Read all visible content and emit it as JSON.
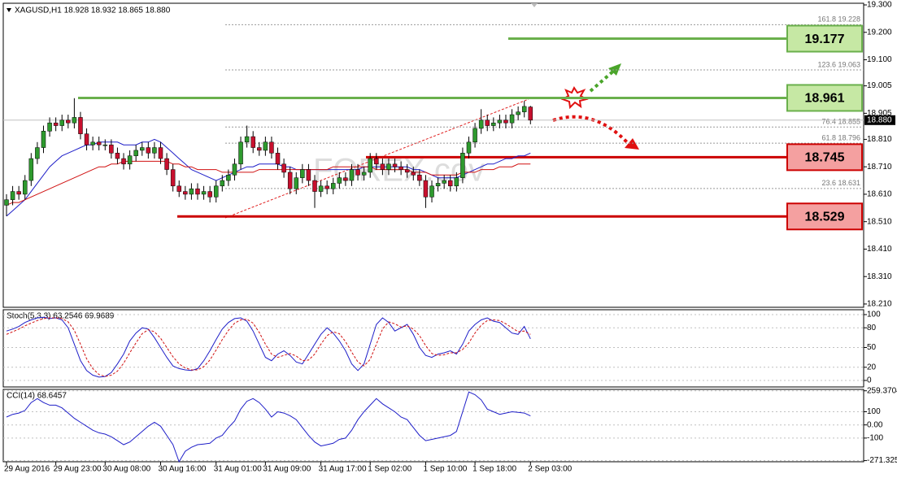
{
  "chart_data": [
    {
      "type": "candlestick",
      "title": "XAGUSD,H1  18.928 18.932 18.865 18.880",
      "watermark": "FOREX.cov",
      "categories": [
        "29 Aug 2016",
        null,
        null,
        null,
        null,
        null,
        null,
        null,
        "29 Aug 23:00",
        null,
        null,
        null,
        null,
        null,
        null,
        null,
        "30 Aug 08:00",
        null,
        null,
        null,
        null,
        null,
        null,
        null,
        null,
        "30 Aug 16:00",
        null,
        null,
        null,
        null,
        null,
        null,
        null,
        null,
        "31 Aug 01:00",
        null,
        null,
        null,
        null,
        null,
        null,
        null,
        "31 Aug 09:00",
        null,
        null,
        null,
        null,
        null,
        null,
        null,
        null,
        "31 Aug 17:00",
        null,
        null,
        null,
        null,
        null,
        null,
        null,
        "1 Sep 02:00",
        null,
        null,
        null,
        null,
        null,
        null,
        null,
        null,
        "1 Sep 10:00",
        null,
        null,
        null,
        null,
        null,
        null,
        null,
        "1 Sep 18:00",
        null,
        null,
        null,
        null,
        null,
        null,
        null,
        null,
        "2 Sep 03:00"
      ],
      "open": [
        18.57,
        18.59,
        18.62,
        18.61,
        18.66,
        18.74,
        18.78,
        18.84,
        18.87,
        18.86,
        18.88,
        18.87,
        18.89,
        18.83,
        18.79,
        18.8,
        18.79,
        18.79,
        18.76,
        18.74,
        18.72,
        18.75,
        18.77,
        18.78,
        18.76,
        18.78,
        18.74,
        18.7,
        18.64,
        18.62,
        18.61,
        18.63,
        18.61,
        18.62,
        18.6,
        18.64,
        18.66,
        18.68,
        18.72,
        18.8,
        18.82,
        18.78,
        18.77,
        18.8,
        18.76,
        18.72,
        18.69,
        18.63,
        18.67,
        18.7,
        18.66,
        18.62,
        18.64,
        18.63,
        18.65,
        18.67,
        18.66,
        18.7,
        18.68,
        18.69,
        18.74,
        18.72,
        18.7,
        18.72,
        18.71,
        18.7,
        18.69,
        18.68,
        18.66,
        18.6,
        18.64,
        18.65,
        18.66,
        18.64,
        18.67,
        18.76,
        18.8,
        18.85,
        18.88,
        18.86,
        18.87,
        18.88,
        18.87,
        18.9,
        18.91,
        18.928
      ],
      "high": [
        18.61,
        18.64,
        18.64,
        18.68,
        18.76,
        18.8,
        18.86,
        18.89,
        18.89,
        18.9,
        18.9,
        18.96,
        18.91,
        18.85,
        18.82,
        18.82,
        18.81,
        18.81,
        18.78,
        18.76,
        18.77,
        18.79,
        18.8,
        18.8,
        18.8,
        18.8,
        18.76,
        18.72,
        18.66,
        18.64,
        18.65,
        18.65,
        18.64,
        18.64,
        18.66,
        18.68,
        18.7,
        18.74,
        18.82,
        18.86,
        18.84,
        18.8,
        18.82,
        18.82,
        18.78,
        18.74,
        18.71,
        18.69,
        18.72,
        18.72,
        18.68,
        18.66,
        18.66,
        18.67,
        18.69,
        18.69,
        18.72,
        18.72,
        18.71,
        18.76,
        18.76,
        18.74,
        18.74,
        18.74,
        18.73,
        18.72,
        18.71,
        18.7,
        18.68,
        18.66,
        18.67,
        18.68,
        18.68,
        18.69,
        18.78,
        18.82,
        18.87,
        18.92,
        18.9,
        18.89,
        18.9,
        18.9,
        18.92,
        18.93,
        18.95,
        18.932
      ],
      "low": [
        18.53,
        18.57,
        18.59,
        18.59,
        18.64,
        18.72,
        18.76,
        18.82,
        18.84,
        18.84,
        18.85,
        18.85,
        18.81,
        18.77,
        18.77,
        18.77,
        18.77,
        18.74,
        18.72,
        18.7,
        18.7,
        18.73,
        18.75,
        18.74,
        18.74,
        18.72,
        18.68,
        18.62,
        18.6,
        18.59,
        18.59,
        18.59,
        18.59,
        18.58,
        18.58,
        18.62,
        18.64,
        18.66,
        18.7,
        18.78,
        18.76,
        18.75,
        18.75,
        18.74,
        18.7,
        18.67,
        18.61,
        18.61,
        18.65,
        18.64,
        18.56,
        18.6,
        18.61,
        18.61,
        18.63,
        18.64,
        18.64,
        18.66,
        18.66,
        18.67,
        18.7,
        18.68,
        18.68,
        18.69,
        18.68,
        18.67,
        18.66,
        18.64,
        18.56,
        18.58,
        18.62,
        18.63,
        18.62,
        18.62,
        18.65,
        18.74,
        18.78,
        18.83,
        18.84,
        18.84,
        18.85,
        18.85,
        18.85,
        18.88,
        18.89,
        18.865
      ],
      "close": [
        18.59,
        18.62,
        18.61,
        18.66,
        18.74,
        18.78,
        18.84,
        18.87,
        18.86,
        18.88,
        18.87,
        18.89,
        18.83,
        18.79,
        18.8,
        18.79,
        18.79,
        18.76,
        18.74,
        18.72,
        18.75,
        18.77,
        18.78,
        18.76,
        18.78,
        18.74,
        18.7,
        18.64,
        18.62,
        18.61,
        18.63,
        18.61,
        18.62,
        18.6,
        18.64,
        18.66,
        18.68,
        18.72,
        18.8,
        18.82,
        18.78,
        18.77,
        18.8,
        18.76,
        18.72,
        18.69,
        18.63,
        18.67,
        18.7,
        18.66,
        18.62,
        18.64,
        18.63,
        18.65,
        18.67,
        18.66,
        18.7,
        18.68,
        18.69,
        18.74,
        18.72,
        18.7,
        18.72,
        18.71,
        18.7,
        18.69,
        18.68,
        18.66,
        18.6,
        18.64,
        18.65,
        18.66,
        18.64,
        18.67,
        18.76,
        18.8,
        18.85,
        18.88,
        18.86,
        18.87,
        18.88,
        18.87,
        18.9,
        18.91,
        18.93,
        18.88
      ],
      "up_color": "#2e9a2e",
      "down_color": "#c8102e",
      "series": [
        {
          "color": "#1e1ec8",
          "values": [
            18.53,
            18.55,
            18.57,
            18.59,
            18.62,
            18.65,
            18.68,
            18.71,
            18.73,
            18.75,
            18.76,
            18.77,
            18.78,
            18.79,
            18.79,
            18.8,
            18.8,
            18.8,
            18.8,
            18.79,
            18.79,
            18.79,
            18.8,
            18.8,
            18.81,
            18.8,
            18.78,
            18.76,
            18.74,
            18.72,
            18.7,
            18.69,
            18.68,
            18.67,
            18.66,
            18.67,
            18.68,
            18.69,
            18.7,
            18.71,
            18.71,
            18.72,
            18.72,
            18.72,
            18.72,
            18.71,
            18.71,
            18.7,
            18.7,
            18.7,
            18.7,
            18.7,
            18.7,
            18.7,
            18.7,
            18.7,
            18.7,
            18.7,
            18.71,
            18.71,
            18.71,
            18.71,
            18.71,
            18.71,
            18.71,
            18.71,
            18.7,
            18.7,
            18.69,
            18.68,
            18.67,
            18.67,
            18.67,
            18.67,
            18.68,
            18.69,
            18.7,
            18.71,
            18.72,
            18.72,
            18.73,
            18.74,
            18.74,
            18.75,
            18.75,
            18.76
          ]
        },
        {
          "color": "#d01010",
          "values": [
            18.57,
            18.58,
            18.58,
            18.59,
            18.6,
            18.61,
            18.62,
            18.63,
            18.64,
            18.65,
            18.66,
            18.67,
            18.68,
            18.69,
            18.7,
            18.71,
            18.71,
            18.72,
            18.72,
            18.73,
            18.73,
            18.73,
            18.73,
            18.73,
            18.73,
            18.73,
            18.73,
            18.72,
            18.72,
            18.71,
            18.71,
            18.7,
            18.7,
            18.7,
            18.7,
            18.69,
            18.69,
            18.69,
            18.69,
            18.69,
            18.69,
            18.7,
            18.7,
            18.7,
            18.7,
            18.7,
            18.7,
            18.7,
            18.7,
            18.7,
            18.7,
            18.7,
            18.7,
            18.71,
            18.71,
            18.71,
            18.71,
            18.71,
            18.71,
            18.71,
            18.7,
            18.7,
            18.7,
            18.7,
            18.7,
            18.7,
            18.69,
            18.69,
            18.69,
            18.68,
            18.68,
            18.68,
            18.68,
            18.68,
            18.69,
            18.69,
            18.69,
            18.7,
            18.7,
            18.7,
            18.71,
            18.71,
            18.71,
            18.72,
            18.72,
            18.72
          ]
        }
      ],
      "ylim": [
        18.198,
        19.306
      ],
      "yticks": [
        {
          "value": 19.3,
          "label": "19.300"
        },
        {
          "value": 19.2,
          "label": "19.200"
        },
        {
          "value": 19.1,
          "label": "19.100"
        },
        19.005,
        18.905,
        {
          "value": 18.81,
          "label": "18.810"
        },
        {
          "value": 18.71,
          "label": "18.710"
        },
        {
          "value": 18.61,
          "label": "18.610"
        },
        {
          "value": 18.51,
          "label": "18.510"
        },
        {
          "value": 18.41,
          "label": "18.410"
        },
        {
          "value": 18.31,
          "label": "18.310"
        },
        {
          "value": 18.21,
          "label": "18.210"
        }
      ],
      "last_price": {
        "value": 18.88,
        "label": "18.880"
      },
      "fib_levels": [
        {
          "value": 19.228,
          "label": "161.8  19.228"
        },
        {
          "value": 19.063,
          "label": "123.6  19.063"
        },
        {
          "value": 18.855,
          "label": "76.4  18.855"
        },
        {
          "value": 18.796,
          "label": "61.8  18.796"
        },
        {
          "value": 18.631,
          "label": "23.6  18.631"
        }
      ],
      "levels": [
        {
          "value": 19.177,
          "color": "#6ab04c",
          "fill": "#c6e8a4"
        },
        {
          "value": 18.961,
          "color": "#6ab04c",
          "fill": "#c6e8a4"
        },
        {
          "value": 18.745,
          "color": "#cc0000",
          "fill": "#f4a0a0"
        },
        {
          "value": 18.529,
          "color": "#cc0000",
          "fill": "#f4a0a0"
        }
      ]
    },
    {
      "type": "line",
      "title": "Stoch(5,3,3) 63.2546 69.9689",
      "ylim": [
        -9.9,
        107.4
      ],
      "yticks": [
        100,
        80,
        50,
        20,
        0
      ],
      "series": [
        {
          "color": "#1e1ec8",
          "style": "solid",
          "values": [
            75,
            78,
            82,
            88,
            92,
            95,
            96,
            94,
            95,
            92,
            80,
            55,
            30,
            15,
            8,
            5,
            6,
            12,
            25,
            40,
            60,
            72,
            80,
            78,
            65,
            50,
            35,
            22,
            18,
            16,
            15,
            18,
            30,
            45,
            62,
            78,
            88,
            94,
            95,
            90,
            75,
            55,
            35,
            30,
            40,
            45,
            38,
            28,
            25,
            40,
            55,
            70,
            80,
            72,
            60,
            45,
            25,
            15,
            25,
            55,
            85,
            95,
            88,
            75,
            80,
            85,
            70,
            50,
            38,
            35,
            40,
            42,
            45,
            40,
            55,
            75,
            85,
            92,
            95,
            90,
            88,
            80,
            72,
            70,
            82,
            63.2546
          ]
        },
        {
          "color": "#d01010",
          "style": "dashed",
          "values": [
            70,
            74,
            78,
            83,
            87,
            91,
            94,
            95,
            95,
            94,
            89,
            76,
            55,
            33,
            18,
            9,
            6,
            8,
            14,
            26,
            42,
            57,
            71,
            77,
            74,
            64,
            50,
            36,
            25,
            19,
            16,
            16,
            21,
            31,
            46,
            62,
            76,
            87,
            92,
            93,
            87,
            73,
            55,
            40,
            35,
            38,
            41,
            37,
            30,
            31,
            40,
            55,
            68,
            74,
            71,
            59,
            43,
            28,
            22,
            32,
            55,
            78,
            89,
            86,
            81,
            83,
            78,
            68,
            53,
            41,
            38,
            39,
            42,
            42,
            47,
            57,
            72,
            84,
            91,
            92,
            91,
            86,
            80,
            74,
            75,
            69.9689
          ]
        }
      ]
    },
    {
      "type": "line",
      "title": "CCI(14) 68.6457",
      "ylim": [
        -280,
        270
      ],
      "yticks": [
        259.3704,
        100,
        {
          "value": 0,
          "label": "0.00"
        },
        -100,
        -271.325
      ],
      "series": [
        {
          "color": "#1e1ec8",
          "style": "solid",
          "values": [
            60,
            80,
            90,
            110,
            170,
            200,
            170,
            150,
            150,
            130,
            90,
            50,
            20,
            -10,
            -40,
            -60,
            -70,
            -90,
            -120,
            -150,
            -130,
            -90,
            -50,
            -10,
            20,
            -10,
            -80,
            -150,
            -280,
            -200,
            -170,
            -150,
            -145,
            -140,
            -100,
            -80,
            -20,
            30,
            120,
            180,
            200,
            170,
            120,
            60,
            100,
            90,
            70,
            40,
            -20,
            -80,
            -130,
            -160,
            -150,
            -140,
            -110,
            -100,
            -40,
            40,
            100,
            150,
            200,
            160,
            130,
            100,
            60,
            40,
            -20,
            -80,
            -120,
            -110,
            -100,
            -90,
            -80,
            -50,
            100,
            250,
            230,
            190,
            120,
            100,
            80,
            90,
            100,
            95,
            90,
            68.6457
          ]
        }
      ]
    }
  ]
}
